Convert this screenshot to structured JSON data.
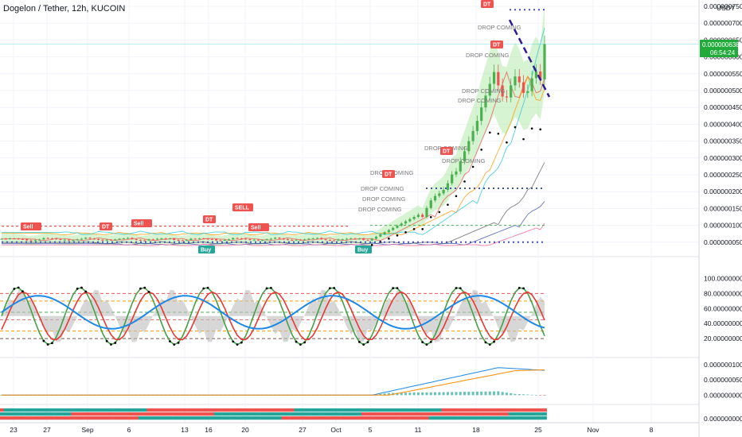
{
  "header": {
    "title": "Dogelon / Tether, 12h, KUCOIN",
    "currency": "USDT"
  },
  "colors": {
    "up": "#26a69a",
    "up_candle": "#4caf50",
    "down": "#ef5350",
    "band_fill": "#a5e69a",
    "grid": "#f0f3fa",
    "axis": "#d1d4dc",
    "stoch_k": "#43a047",
    "stoch_d": "#e53935",
    "rsi": "#1e88e5",
    "macd": "#1e88e5",
    "signal": "#fb8c00"
  },
  "main_axis": {
    "ticks": [
      "0.000000750",
      "0.000000700",
      "0.000000650",
      "0.000000600",
      "0.000000550",
      "0.000000500",
      "0.000000450",
      "0.000000400",
      "0.000000350",
      "0.000000300",
      "0.000000250",
      "0.000000200",
      "0.000000150",
      "0.000000100",
      "0.000000050"
    ],
    "price_label": "0.000000638",
    "countdown": "06:54:24"
  },
  "osc_axis": {
    "ticks": [
      "100.000000000",
      "80.000000000",
      "60.000000000",
      "40.000000000",
      "20.000000000"
    ]
  },
  "macd_axis": {
    "ticks": [
      "0.000000100",
      "0.000000050",
      "0.000000000"
    ]
  },
  "trend_axis": {
    "ticks": [
      "0.000000000"
    ]
  },
  "dates": [
    "23",
    "27",
    "Sep",
    "6",
    "13",
    "16",
    "20",
    "27",
    "Oct",
    "5",
    "11",
    "18",
    "25",
    "Nov",
    "8"
  ],
  "labels": {
    "drop_coming": "DROP COMING",
    "drop_coming_dt": "DROP COMING",
    "dt": "DT",
    "sell": "Sell",
    "sell_upper": "SELL",
    "buy": "Buy",
    "dt_top": "DROP DT MING"
  },
  "chart_data": [
    {
      "type": "candlestick",
      "title": "Dogelon / Tether, 12h, KUCOIN",
      "ylabel": "USDT",
      "ylim": [
        3e-08,
        7.6e-07
      ],
      "x": [
        "Aug 23",
        "Aug 27",
        "Sep 1",
        "Sep 6",
        "Sep 13",
        "Sep 16",
        "Sep 20",
        "Sep 27",
        "Oct 1",
        "Oct 5",
        "Oct 11",
        "Oct 18",
        "Oct 25"
      ],
      "close": [
        6.2e-08,
        6e-08,
        5.8e-08,
        5.7e-08,
        6e-08,
        5.8e-08,
        5.6e-08,
        5.5e-08,
        6.2e-08,
        1.3e-07,
        2.6e-07,
        4.8e-07,
        6.38e-07
      ],
      "last_price": 6.38e-07
    },
    {
      "type": "line",
      "title": "",
      "ylim": [
        0,
        110
      ],
      "series": [
        {
          "values": [
            30,
            20,
            75,
            15,
            85,
            30,
            25,
            20,
            82,
            88,
            65,
            82,
            70
          ]
        },
        {
          "values": [
            35,
            22,
            68,
            22,
            78,
            40,
            28,
            30,
            70,
            90,
            72,
            80,
            68
          ]
        },
        {
          "values": [
            45,
            40,
            62,
            45,
            60,
            55,
            50,
            45,
            65,
            85,
            72,
            75,
            65
          ]
        }
      ]
    },
    {
      "type": "line",
      "title": "",
      "ylim": [
        -2e-08,
        1.1e-07
      ],
      "series": [
        {
          "values": [
            0,
            0,
            0,
            0,
            0,
            0,
            0,
            0,
            2e-09,
            1e-08,
            3e-08,
            9e-08,
            8e-08
          ]
        },
        {
          "values": [
            0,
            0,
            0,
            0,
            0,
            0,
            0,
            0,
            1e-09,
            6e-09,
            2e-08,
            7e-08,
            9e-08
          ]
        }
      ]
    }
  ]
}
